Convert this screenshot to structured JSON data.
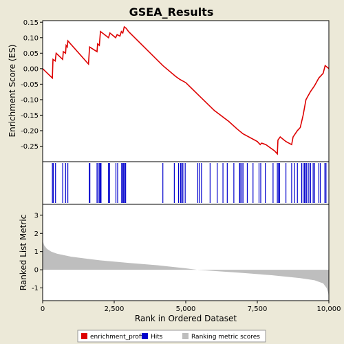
{
  "colors": {
    "background": "#ECE9D8",
    "plot_bg": "#FFFFFF",
    "es_line": "#DD0000",
    "hits": "#0000CC",
    "metric_fill": "#BEBEBE"
  },
  "chart_data": {
    "type": "line",
    "title": "GSEA_Results",
    "xlabel": "Rank in Ordered Dataset",
    "legend": {
      "placement": "bottom",
      "entries": [
        {
          "label": "enrichment_profile",
          "color": "#DD0000"
        },
        {
          "label": "Hits",
          "color": "#0000CC"
        },
        {
          "label": "Ranking metric scores",
          "color": "#BEBEBE"
        }
      ]
    },
    "xlim": [
      0,
      10000
    ],
    "x_ticks": [
      {
        "value": 0,
        "label": "0"
      },
      {
        "value": 2500,
        "label": "2,500"
      },
      {
        "value": 5000,
        "label": "5,000"
      },
      {
        "value": 7500,
        "label": "7,500"
      },
      {
        "value": 10000,
        "label": "10,000"
      }
    ],
    "enrichment_plot": {
      "ylabel": "Enrichment Score (ES)",
      "ylim": [
        -0.3,
        0.155
      ],
      "y_ticks": [
        {
          "value": 0.15,
          "label": "0.15"
        },
        {
          "value": 0.1,
          "label": "0.10"
        },
        {
          "value": 0.05,
          "label": "0.05"
        },
        {
          "value": 0.0,
          "label": "0.00"
        },
        {
          "value": -0.05,
          "label": "-0.05"
        },
        {
          "value": -0.1,
          "label": "-0.10"
        },
        {
          "value": -0.15,
          "label": "-0.15"
        },
        {
          "value": -0.2,
          "label": "-0.20"
        },
        {
          "value": -0.25,
          "label": "-0.25"
        }
      ],
      "series": [
        {
          "points": [
            [
              0,
              0.0
            ],
            [
              340,
              -0.03
            ],
            [
              360,
              0.03
            ],
            [
              440,
              0.025
            ],
            [
              470,
              0.05
            ],
            [
              700,
              0.03
            ],
            [
              720,
              0.055
            ],
            [
              800,
              0.05
            ],
            [
              820,
              0.075
            ],
            [
              860,
              0.07
            ],
            [
              880,
              0.09
            ],
            [
              1600,
              0.015
            ],
            [
              1640,
              0.07
            ],
            [
              1900,
              0.055
            ],
            [
              1920,
              0.08
            ],
            [
              1980,
              0.075
            ],
            [
              2020,
              0.12
            ],
            [
              2300,
              0.1
            ],
            [
              2350,
              0.115
            ],
            [
              2550,
              0.1
            ],
            [
              2600,
              0.11
            ],
            [
              2700,
              0.105
            ],
            [
              2750,
              0.12
            ],
            [
              2800,
              0.115
            ],
            [
              2850,
              0.135
            ],
            [
              2920,
              0.13
            ],
            [
              3000,
              0.12
            ],
            [
              4200,
              0.01
            ],
            [
              4650,
              -0.025
            ],
            [
              4800,
              -0.035
            ],
            [
              5000,
              -0.045
            ],
            [
              5500,
              -0.09
            ],
            [
              6000,
              -0.135
            ],
            [
              6500,
              -0.17
            ],
            [
              6800,
              -0.195
            ],
            [
              7000,
              -0.21
            ],
            [
              7500,
              -0.235
            ],
            [
              7600,
              -0.245
            ],
            [
              7650,
              -0.24
            ],
            [
              7800,
              -0.245
            ],
            [
              8100,
              -0.265
            ],
            [
              8200,
              -0.275
            ],
            [
              8220,
              -0.23
            ],
            [
              8300,
              -0.22
            ],
            [
              8500,
              -0.235
            ],
            [
              8700,
              -0.245
            ],
            [
              8750,
              -0.22
            ],
            [
              8900,
              -0.2
            ],
            [
              9000,
              -0.19
            ],
            [
              9100,
              -0.15
            ],
            [
              9200,
              -0.1
            ],
            [
              9350,
              -0.075
            ],
            [
              9500,
              -0.055
            ],
            [
              9650,
              -0.03
            ],
            [
              9800,
              -0.015
            ],
            [
              9870,
              0.01
            ],
            [
              10000,
              0.0
            ]
          ]
        }
      ]
    },
    "hits": [
      340,
      370,
      450,
      700,
      800,
      880,
      1630,
      1650,
      1900,
      1940,
      1990,
      2020,
      2040,
      2300,
      2340,
      2560,
      2620,
      2760,
      2800,
      2830,
      2860,
      2900,
      4200,
      4600,
      4750,
      4820,
      4860,
      4900,
      4980,
      5420,
      5480,
      5550,
      5850,
      6100,
      6300,
      6450,
      6680,
      6880,
      6900,
      6960,
      7000,
      7150,
      7350,
      7560,
      7620,
      7780,
      8050,
      8200,
      8240,
      8280,
      8500,
      8700,
      8800,
      8900,
      9050,
      9100,
      9150,
      9200,
      9230,
      9300,
      9360,
      9450,
      9500,
      9650,
      9700,
      9860,
      9900
    ],
    "ranking_plot": {
      "ylabel": "Ranked List Metric",
      "ylim": [
        -1.7,
        3.6
      ],
      "y_ticks": [
        {
          "value": 3,
          "label": "3"
        },
        {
          "value": 2,
          "label": "2"
        },
        {
          "value": 1,
          "label": "1"
        },
        {
          "value": 0,
          "label": "0"
        },
        {
          "value": -1,
          "label": "-1"
        }
      ],
      "series": [
        {
          "points": [
            [
              0,
              1.6
            ],
            [
              50,
              1.35
            ],
            [
              150,
              1.15
            ],
            [
              300,
              1.0
            ],
            [
              500,
              0.88
            ],
            [
              1000,
              0.72
            ],
            [
              2000,
              0.52
            ],
            [
              3000,
              0.38
            ],
            [
              4000,
              0.25
            ],
            [
              5000,
              0.08
            ],
            [
              5400,
              0.0
            ],
            [
              6000,
              -0.07
            ],
            [
              7000,
              -0.18
            ],
            [
              8000,
              -0.3
            ],
            [
              9000,
              -0.46
            ],
            [
              9500,
              -0.58
            ],
            [
              9800,
              -0.75
            ],
            [
              9920,
              -1.0
            ],
            [
              9980,
              -1.3
            ],
            [
              10000,
              -1.55
            ]
          ]
        }
      ]
    }
  }
}
